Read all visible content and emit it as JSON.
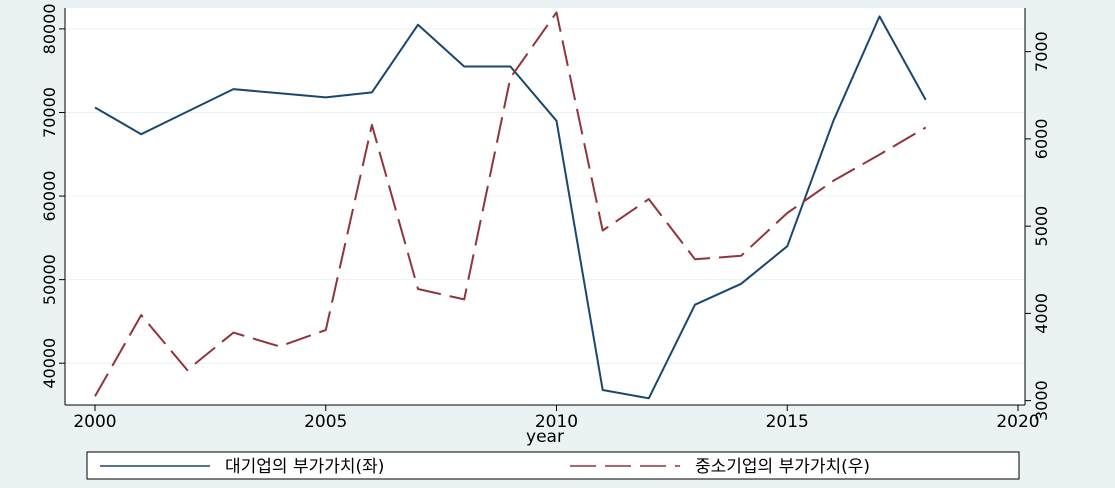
{
  "chart_data": {
    "type": "line",
    "xlabel": "year",
    "x_ticks": [
      2000,
      2005,
      2010,
      2015,
      2020
    ],
    "xlim": [
      2000,
      2020
    ],
    "y_left": {
      "ticks": [
        40000,
        50000,
        60000,
        70000,
        80000
      ],
      "range": [
        35000,
        82500
      ]
    },
    "y_right": {
      "ticks": [
        3000,
        4000,
        5000,
        6000,
        7000
      ],
      "range": [
        2950,
        7500
      ]
    },
    "grid": true,
    "legend_position": "bottom",
    "x": [
      2000,
      2001,
      2002,
      2003,
      2004,
      2005,
      2006,
      2007,
      2008,
      2009,
      2010,
      2011,
      2012,
      2013,
      2014,
      2015,
      2016,
      2017,
      2018
    ],
    "series": [
      {
        "name": "대기업의 부가가치(좌)",
        "axis": "left",
        "color": "#1a476f",
        "dash": "solid",
        "values": [
          70600,
          67400,
          70100,
          72800,
          72300,
          71800,
          72400,
          80500,
          75500,
          75500,
          69000,
          36800,
          35800,
          47000,
          49500,
          54000,
          69000,
          81500,
          71500
        ]
      },
      {
        "name": "중소기업의 부가가치(우)",
        "axis": "right",
        "color": "#90353b",
        "dash": "long-dash",
        "values": [
          3050,
          3980,
          3350,
          3780,
          3620,
          3810,
          6160,
          4280,
          4160,
          6700,
          7450,
          4950,
          5310,
          4620,
          4660,
          5150,
          5520,
          5820,
          6130
        ]
      }
    ]
  }
}
